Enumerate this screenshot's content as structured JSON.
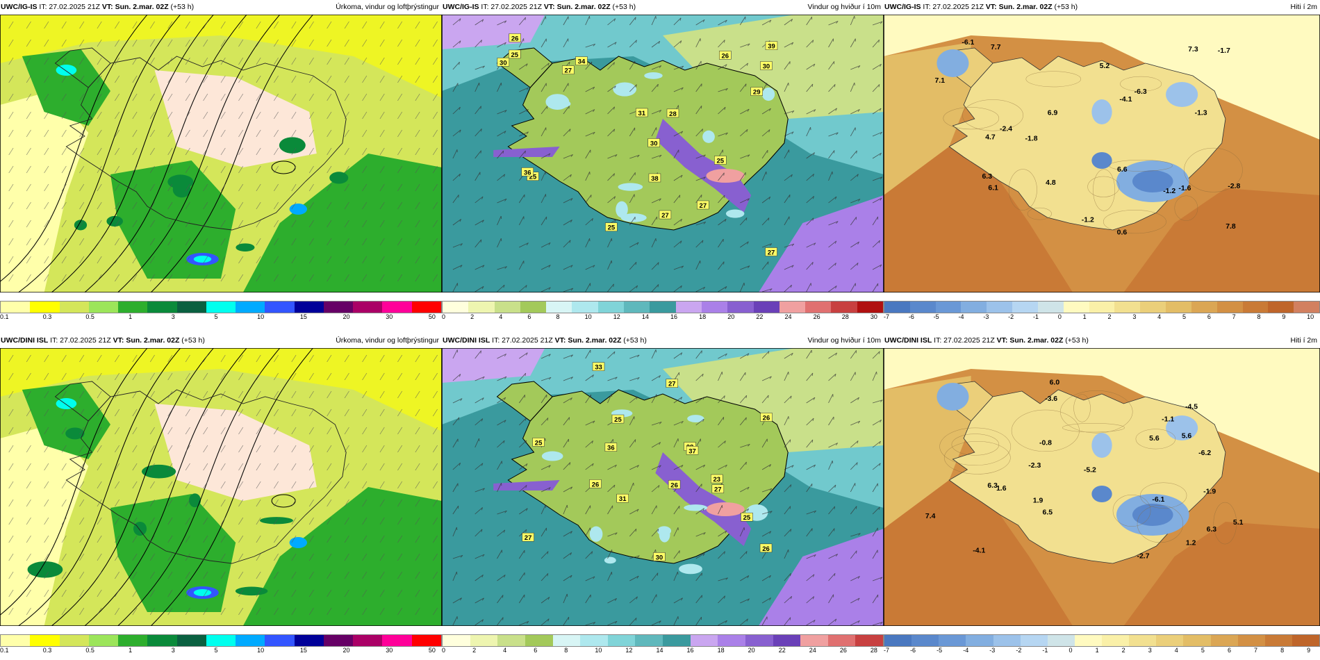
{
  "panels": [
    {
      "id": "p1",
      "model": "UWC/IG-IS",
      "it_label": "IT: 27.02.2025 21Z",
      "vt_label": "VT: Sun. 2.mar. 02Z",
      "lead": "(+53 h)",
      "title": "Úrkoma, vindur og loftþrýstingur",
      "type": "precip",
      "colorbar": {
        "colors": [
          "#ffffaa",
          "#ffff00",
          "#d4e65a",
          "#9ce55a",
          "#2dae2d",
          "#0a8a3a",
          "#0a6040",
          "#00ffee",
          "#00aaff",
          "#3355ff",
          "#000099",
          "#660066",
          "#aa0066",
          "#ff0099",
          "#ff0000"
        ],
        "ticks": [
          "0.1",
          "0.3",
          "0.5",
          "1",
          "3",
          "5",
          "10",
          "15",
          "20",
          "30",
          "50"
        ]
      }
    },
    {
      "id": "p2",
      "model": "UWC/IG-IS",
      "it_label": "IT: 27.02.2025 21Z",
      "vt_label": "VT: Sun. 2.mar. 02Z",
      "lead": "(+53 h)",
      "title": "Vindur og hviður í 10m",
      "type": "wind",
      "labels": [
        "25",
        "27",
        "26",
        "25",
        "25",
        "30",
        "31",
        "28",
        "36",
        "38",
        "30",
        "25",
        "27",
        "29",
        "27",
        "30",
        "26",
        "27",
        "39",
        "34"
      ],
      "colorbar": {
        "colors": [
          "#ffffdd",
          "#eef5b0",
          "#c9e08a",
          "#a3c95a",
          "#d8f5f5",
          "#aee8ee",
          "#80d4d8",
          "#5fb8bc",
          "#3a9a9e",
          "#caa6f0",
          "#aa80e8",
          "#8860d0",
          "#6a40b8",
          "#f0a0a0",
          "#e07070",
          "#c84040",
          "#b01010"
        ],
        "ticks": [
          "0",
          "2",
          "4",
          "6",
          "8",
          "10",
          "12",
          "14",
          "16",
          "18",
          "20",
          "22",
          "24",
          "26",
          "28",
          "30"
        ]
      }
    },
    {
      "id": "p3",
      "model": "UWC/IG-IS",
      "it_label": "IT: 27.02.2025 21Z",
      "vt_label": "VT: Sun. 2.mar. 02Z",
      "lead": "(+53 h)",
      "title": "Hiti í 2m",
      "type": "temp",
      "labels": [
        "-1.7",
        "-4.1",
        "-1.2",
        "4.8",
        "6.3",
        "-2.4",
        "-1.2",
        "-1.3",
        "7.8",
        "0.6",
        "-2.8",
        "4.7",
        "7.1",
        "7.3",
        "-1.8",
        "-6.1",
        "-1.6",
        "-6.3",
        "6.1",
        "7.7",
        "5.2",
        "6.6",
        "6.9"
      ],
      "colorbar": {
        "colors": [
          "#4a78c0",
          "#5a88cc",
          "#6a98d6",
          "#82aee0",
          "#9cc2ea",
          "#b6d6f2",
          "#cfe4e8",
          "#fffac0",
          "#faf0a8",
          "#f2e090",
          "#ebcf7a",
          "#e3bd66",
          "#dba654",
          "#d39044",
          "#c97a36",
          "#bf652a",
          "#d28060"
        ],
        "ticks": [
          "-7",
          "-6",
          "-5",
          "-4",
          "-3",
          "-2",
          "-1",
          "0",
          "1",
          "2",
          "3",
          "4",
          "5",
          "6",
          "7",
          "8",
          "9",
          "10"
        ]
      }
    },
    {
      "id": "p4",
      "model": "UWC/DINI ISL",
      "it_label": "IT: 27.02.2025 21Z",
      "vt_label": "VT: Sun. 2.mar. 02Z",
      "lead": "(+53 h)",
      "title": "Úrkoma, vindur og loftþrýstingur",
      "type": "precip",
      "colorbar": {
        "colors": [
          "#ffffaa",
          "#ffff00",
          "#d4e65a",
          "#9ce55a",
          "#2dae2d",
          "#0a8a3a",
          "#0a6040",
          "#00ffee",
          "#00aaff",
          "#3355ff",
          "#000099",
          "#660066",
          "#aa0066",
          "#ff0099",
          "#ff0000"
        ],
        "ticks": [
          "0.1",
          "0.3",
          "0.5",
          "1",
          "3",
          "5",
          "10",
          "15",
          "20",
          "30",
          "50"
        ]
      }
    },
    {
      "id": "p5",
      "model": "UWC/DINI ISL",
      "it_label": "IT: 27.02.2025 21Z",
      "vt_label": "VT: Sun. 2.mar. 02Z",
      "lead": "(+53 h)",
      "title": "Vindur og hviður í 10m",
      "type": "wind",
      "labels": [
        "25",
        "27",
        "26",
        "26",
        "26",
        "23",
        "28",
        "30",
        "25",
        "36",
        "26",
        "27",
        "31",
        "27",
        "37",
        "25",
        "33"
      ],
      "colorbar": {
        "colors": [
          "#ffffdd",
          "#eef5b0",
          "#c9e08a",
          "#a3c95a",
          "#d8f5f5",
          "#aee8ee",
          "#80d4d8",
          "#5fb8bc",
          "#3a9a9e",
          "#caa6f0",
          "#aa80e8",
          "#8860d0",
          "#6a40b8",
          "#f0a0a0",
          "#e07070",
          "#c84040"
        ],
        "ticks": [
          "0",
          "2",
          "4",
          "6",
          "8",
          "10",
          "12",
          "14",
          "16",
          "18",
          "20",
          "22",
          "24",
          "26",
          "28"
        ]
      }
    },
    {
      "id": "p6",
      "model": "UWC/DINI ISL",
      "it_label": "IT: 27.02.2025 21Z",
      "vt_label": "VT: Sun. 2.mar. 02Z",
      "lead": "(+53 h)",
      "title": "Hiti í 2m",
      "type": "temp",
      "labels": [
        "-5.2",
        "-2.3",
        "-4.1",
        "-0.8",
        "5.1",
        "-3.6",
        "6.3",
        "5.6",
        "-4.5",
        "6.0",
        "-1.9",
        "5.6",
        "1.6",
        "1.2",
        "-2.7",
        "-6.1",
        "-6.2",
        "-1.1",
        "6.3",
        "1.9",
        "6.5",
        "7.4"
      ],
      "colorbar": {
        "colors": [
          "#4a78c0",
          "#5a88cc",
          "#6a98d6",
          "#82aee0",
          "#9cc2ea",
          "#b6d6f2",
          "#cfe4e8",
          "#fffac0",
          "#faf0a8",
          "#f2e090",
          "#ebcf7a",
          "#e3bd66",
          "#dba654",
          "#d39044",
          "#c97a36",
          "#bf652a"
        ],
        "ticks": [
          "-7",
          "-6",
          "-5",
          "-4",
          "-3",
          "-2",
          "-1",
          "0",
          "1",
          "2",
          "3",
          "4",
          "5",
          "6",
          "7",
          "8",
          "9"
        ]
      }
    }
  ]
}
